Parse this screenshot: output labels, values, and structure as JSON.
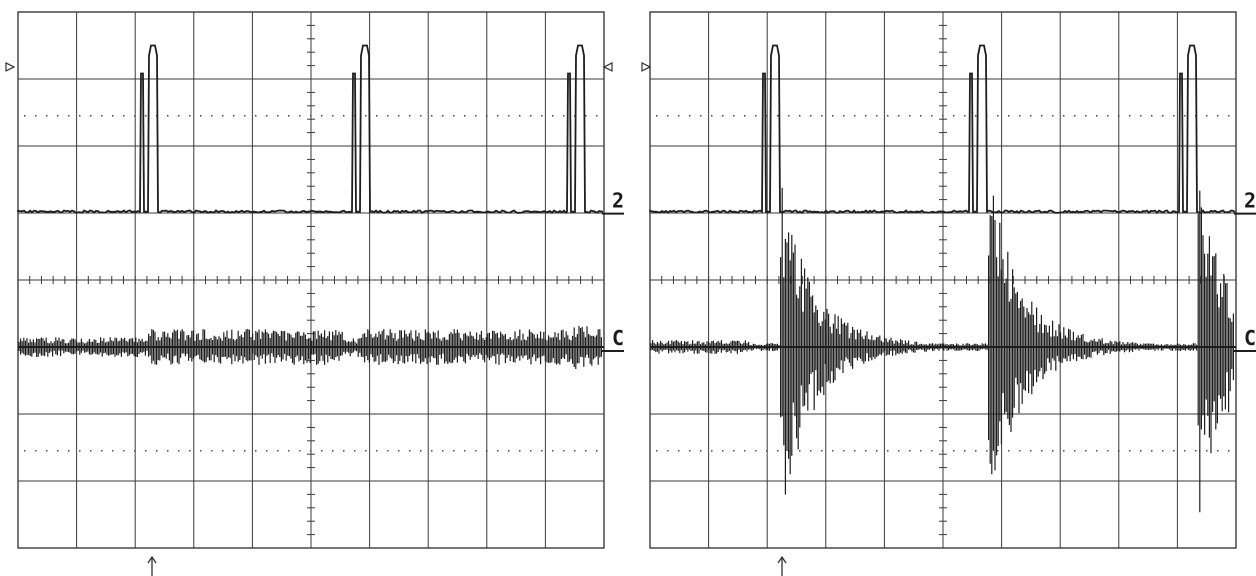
{
  "image": {
    "type": "oscilloscope-screenshot-pair",
    "panels": [
      {
        "id": "left",
        "channel_label_top": "2",
        "channel_label_bottom": "C",
        "trace_top": {
          "kind": "pulse-train",
          "pulse_count": 3
        },
        "trace_bottom": {
          "kind": "low-amplitude-noise"
        }
      },
      {
        "id": "right",
        "channel_label_top": "2",
        "channel_label_bottom": "C",
        "trace_top": {
          "kind": "pulse-train",
          "pulse_count": 3
        },
        "trace_bottom": {
          "kind": "decaying-bursts"
        }
      }
    ],
    "colors": {
      "background": "#ffffff",
      "grid": "#3a3a3a",
      "trace": "#1e1e1e"
    }
  }
}
